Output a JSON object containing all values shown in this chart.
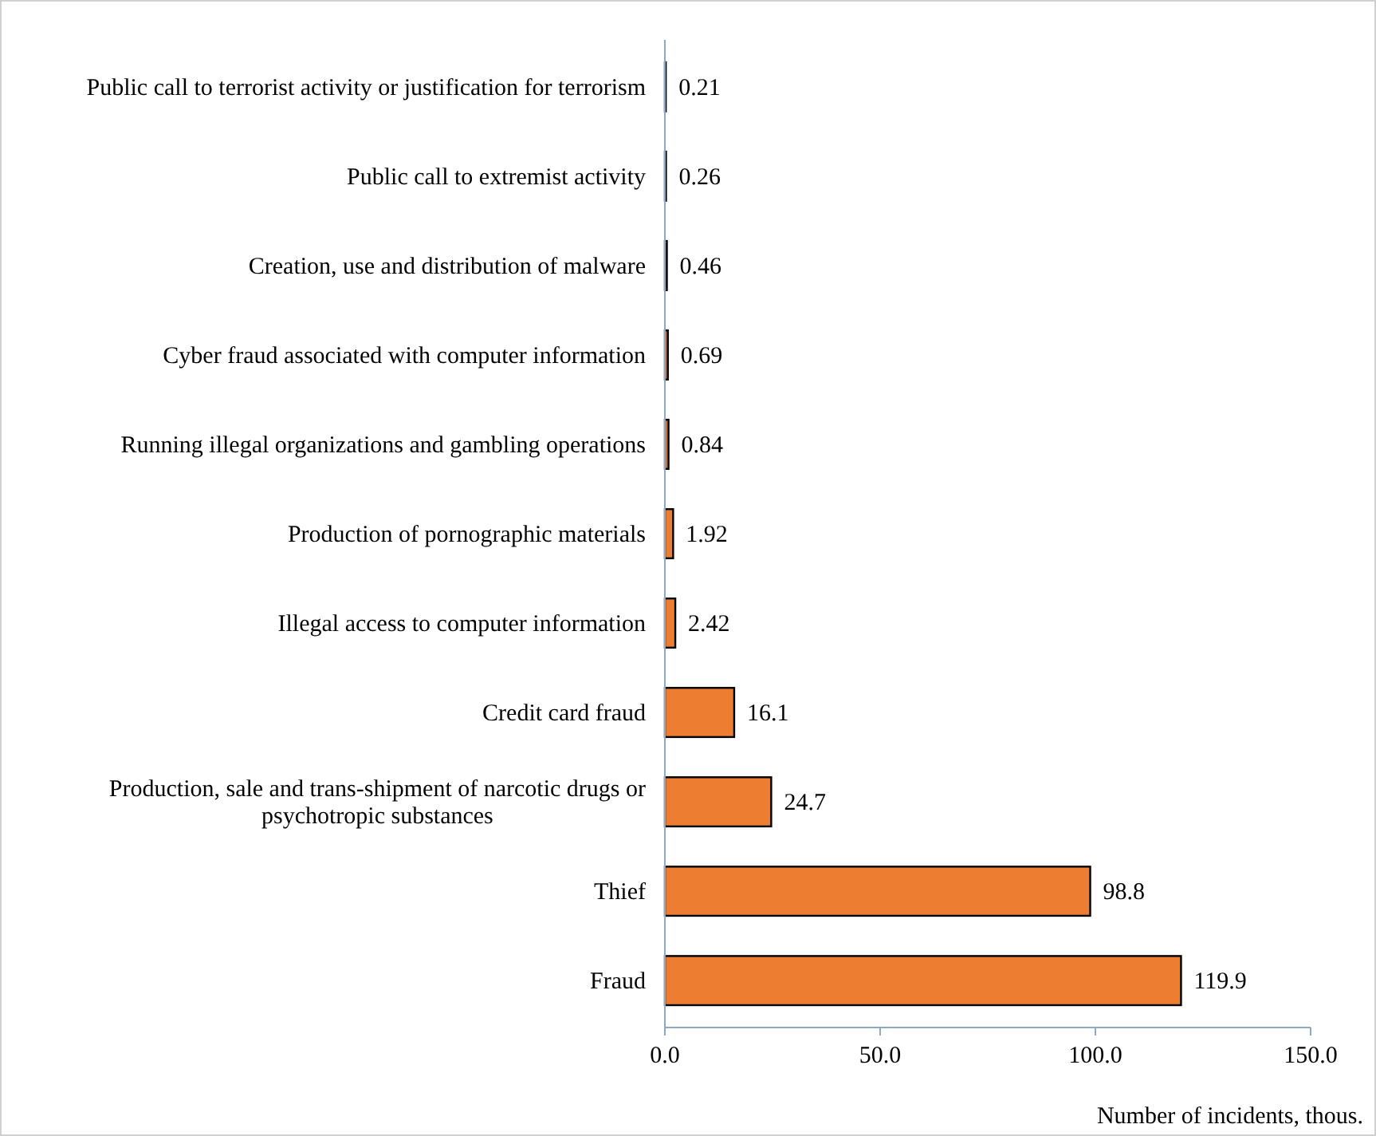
{
  "chart_data": {
    "type": "bar",
    "orientation": "horizontal",
    "xlabel": "Number of incidents, thous.",
    "categories": [
      "Public call to terrorist activity or justification for terrorism",
      "Public call to extremist activity",
      "Creation, use and distribution of malware",
      "Cyber fraud associated with computer information",
      "Running illegal organizations and gambling operations",
      "Production of pornographic materials",
      "Illegal access to computer information",
      "Credit card fraud",
      "Production, sale and trans-shipment of narcotic drugs or psychotropic substances",
      "Thief",
      "Fraud"
    ],
    "values": [
      0.21,
      0.26,
      0.46,
      0.69,
      0.84,
      1.92,
      2.42,
      16.1,
      24.7,
      98.8,
      119.9
    ],
    "color": "#ed7d31",
    "xlim": [
      0,
      150
    ],
    "xticks": [
      {
        "value": 0,
        "label": "0.0"
      },
      {
        "value": 50,
        "label": "50.0"
      },
      {
        "value": 100,
        "label": "100.0"
      },
      {
        "value": 150,
        "label": "150.0"
      }
    ],
    "data_labels": true
  }
}
